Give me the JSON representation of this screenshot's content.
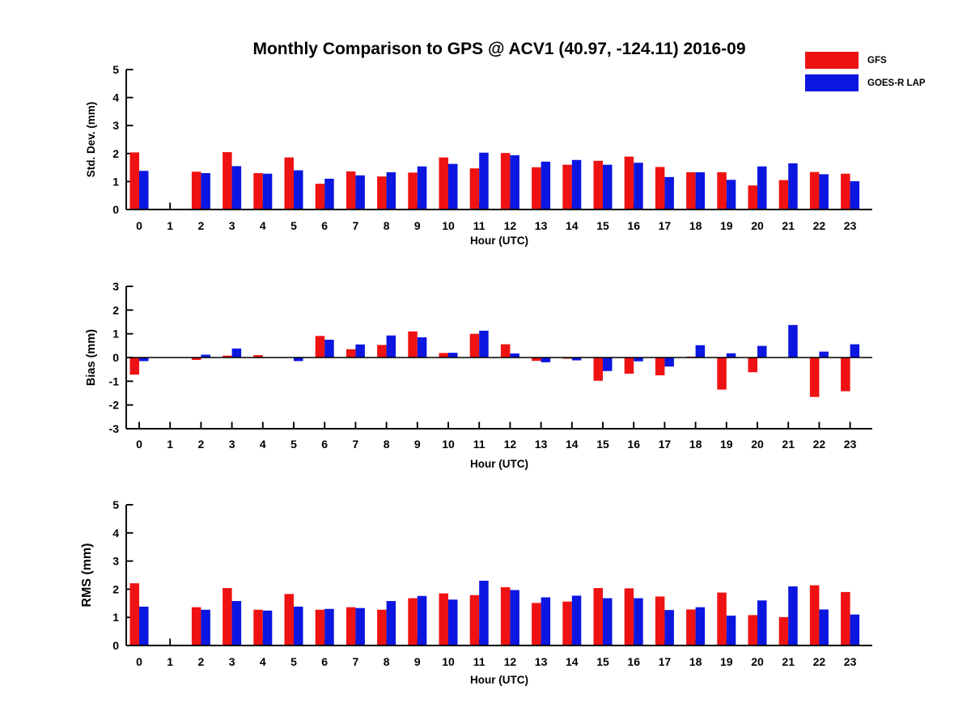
{
  "title": "Monthly Comparison to GPS @ ACV1 (40.97, -124.11) 2016-09",
  "xlabel": "Hour (UTC)",
  "legend": {
    "items": [
      {
        "label": "GFS",
        "color": "#ee1212"
      },
      {
        "label": "GOES-R LAP",
        "color": "#0b16e0"
      }
    ]
  },
  "colors": {
    "gfs": "#ee1212",
    "goes_r_lap": "#0b16e0",
    "axis": "#000000"
  },
  "chart_data": [
    {
      "type": "bar",
      "ylabel": "Std. Dev. (mm)",
      "xlabel": "Hour (UTC)",
      "ylim": [
        0,
        5
      ],
      "yticks": [
        0,
        1,
        2,
        3,
        4,
        5
      ],
      "grid": false,
      "categories": [
        "0",
        "1",
        "2",
        "3",
        "4",
        "5",
        "6",
        "7",
        "8",
        "9",
        "10",
        "11",
        "12",
        "13",
        "14",
        "15",
        "16",
        "17",
        "18",
        "19",
        "20",
        "21",
        "22",
        "23"
      ],
      "series": [
        {
          "name": "GFS",
          "color": "#ee1212",
          "values": [
            2.04,
            null,
            1.35,
            2.05,
            1.3,
            1.86,
            0.92,
            1.36,
            1.18,
            1.32,
            1.86,
            1.47,
            2.02,
            1.51,
            1.6,
            1.74,
            1.89,
            1.52,
            1.33,
            1.33,
            0.86,
            1.05,
            1.34,
            1.28
          ]
        },
        {
          "name": "GOES-R LAP",
          "color": "#0b16e0",
          "values": [
            1.38,
            null,
            1.3,
            1.55,
            1.28,
            1.4,
            1.1,
            1.22,
            1.33,
            1.54,
            1.63,
            2.03,
            1.94,
            1.71,
            1.77,
            1.6,
            1.67,
            1.16,
            1.33,
            1.06,
            1.54,
            1.65,
            1.26,
            1.01
          ]
        }
      ]
    },
    {
      "type": "bar",
      "ylabel": "Bias (mm)",
      "xlabel": "Hour (UTC)",
      "ylim": [
        -3,
        3
      ],
      "yticks": [
        -3,
        -2,
        -1,
        0,
        1,
        2,
        3
      ],
      "grid": false,
      "zero_line": true,
      "categories": [
        "0",
        "1",
        "2",
        "3",
        "4",
        "5",
        "6",
        "7",
        "8",
        "9",
        "10",
        "11",
        "12",
        "13",
        "14",
        "15",
        "16",
        "17",
        "18",
        "19",
        "20",
        "21",
        "22",
        "23"
      ],
      "series": [
        {
          "name": "GFS",
          "color": "#ee1212",
          "values": [
            -0.72,
            null,
            -0.1,
            0.08,
            0.1,
            0.0,
            0.91,
            0.35,
            0.53,
            1.1,
            0.19,
            1.0,
            0.56,
            -0.14,
            -0.05,
            -0.98,
            -0.68,
            -0.75,
            0.04,
            -1.35,
            -0.62,
            0.0,
            -1.66,
            -1.42
          ]
        },
        {
          "name": "GOES-R LAP",
          "color": "#0b16e0",
          "values": [
            -0.15,
            null,
            0.12,
            0.38,
            0.0,
            -0.15,
            0.75,
            0.55,
            0.93,
            0.85,
            0.2,
            1.13,
            0.17,
            -0.2,
            -0.12,
            -0.57,
            -0.16,
            -0.38,
            0.52,
            0.18,
            0.49,
            1.37,
            0.25,
            0.56
          ]
        }
      ]
    },
    {
      "type": "bar",
      "ylabel": "RMS (mm)",
      "xlabel": "Hour (UTC)",
      "ylim": [
        0,
        5
      ],
      "yticks": [
        0,
        1,
        2,
        3,
        4,
        5
      ],
      "grid": false,
      "categories": [
        "0",
        "1",
        "2",
        "3",
        "4",
        "5",
        "6",
        "7",
        "8",
        "9",
        "10",
        "11",
        "12",
        "13",
        "14",
        "15",
        "16",
        "17",
        "18",
        "19",
        "20",
        "21",
        "22",
        "23"
      ],
      "series": [
        {
          "name": "GFS",
          "color": "#ee1212",
          "values": [
            2.21,
            null,
            1.36,
            2.04,
            1.27,
            1.83,
            1.27,
            1.36,
            1.27,
            1.68,
            1.85,
            1.79,
            2.07,
            1.51,
            1.56,
            2.04,
            2.03,
            1.74,
            1.28,
            1.88,
            1.08,
            1.01,
            2.14,
            1.9
          ]
        },
        {
          "name": "GOES-R LAP",
          "color": "#0b16e0",
          "values": [
            1.38,
            null,
            1.27,
            1.58,
            1.24,
            1.38,
            1.3,
            1.33,
            1.58,
            1.76,
            1.63,
            2.3,
            1.97,
            1.71,
            1.77,
            1.68,
            1.68,
            1.26,
            1.36,
            1.06,
            1.6,
            2.1,
            1.28,
            1.1
          ]
        }
      ]
    }
  ]
}
